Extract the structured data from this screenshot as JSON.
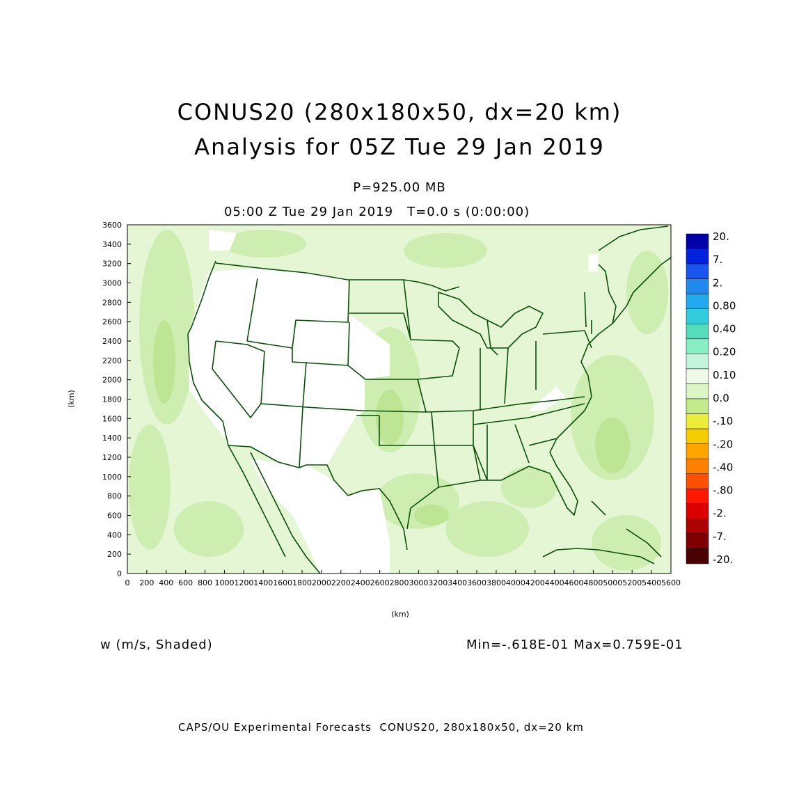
{
  "title_line1": "CONUS20 (280x180x50, dx=20 km)",
  "title_line2": "Analysis for 05Z Tue 29 Jan 2019",
  "level_label": "P=925.00 MB",
  "time_label": "05:00 Z Tue 29 Jan 2019   T=0.0 s (0:00:00)",
  "variable_label": "w (m/s, Shaded)",
  "minmax_label": "Min=-.618E-01 Max=0.759E-01",
  "footer": "CAPS/OU Experimental Forecasts  CONUS20, 280x180x50, dx=20 km",
  "axes": {
    "x_label": "(km)",
    "y_label": "(km)",
    "x_ticks": [
      "0",
      "200",
      "400",
      "600",
      "800",
      "1000",
      "1200",
      "1400",
      "1600",
      "1800",
      "2000",
      "2200",
      "2400",
      "2600",
      "2800",
      "3000",
      "3200",
      "3400",
      "3600",
      "3800",
      "4000",
      "4200",
      "4400",
      "4600",
      "4800",
      "5000",
      "5200",
      "5400",
      "5600"
    ],
    "y_ticks": [
      "0",
      "200",
      "400",
      "600",
      "800",
      "1000",
      "1200",
      "1400",
      "1600",
      "1800",
      "2000",
      "2200",
      "2400",
      "2600",
      "2800",
      "3000",
      "3200",
      "3400",
      "3600"
    ],
    "x_range": [
      0,
      5600
    ],
    "y_range": [
      0,
      3600
    ]
  },
  "colorbar": {
    "labels": [
      "20.",
      "7.",
      "2.",
      "0.80",
      "0.40",
      "0.20",
      "0.10",
      "0.0",
      "-.10",
      "-.20",
      "-.40",
      "-.80",
      "-2.",
      "-7.",
      "-20."
    ],
    "colors": [
      "#0000a8",
      "#0022dd",
      "#1a55ee",
      "#2288ee",
      "#22aaee",
      "#33ccdd",
      "#55ddbb",
      "#88eec4",
      "#c4f5dc",
      "#eef9e8",
      "#dcf5c4",
      "#c4ec8c",
      "#ecec3a",
      "#f5cc00",
      "#ffa500",
      "#ff7f00",
      "#ff5000",
      "#ff1800",
      "#dd0000",
      "#aa0000",
      "#800000",
      "#4a0000"
    ]
  },
  "colors": {
    "map_lines": "#0b4d0b",
    "field_light": "#e8f8d8",
    "field_medium": "#d0eeb0",
    "field_dark": "#bde594"
  }
}
